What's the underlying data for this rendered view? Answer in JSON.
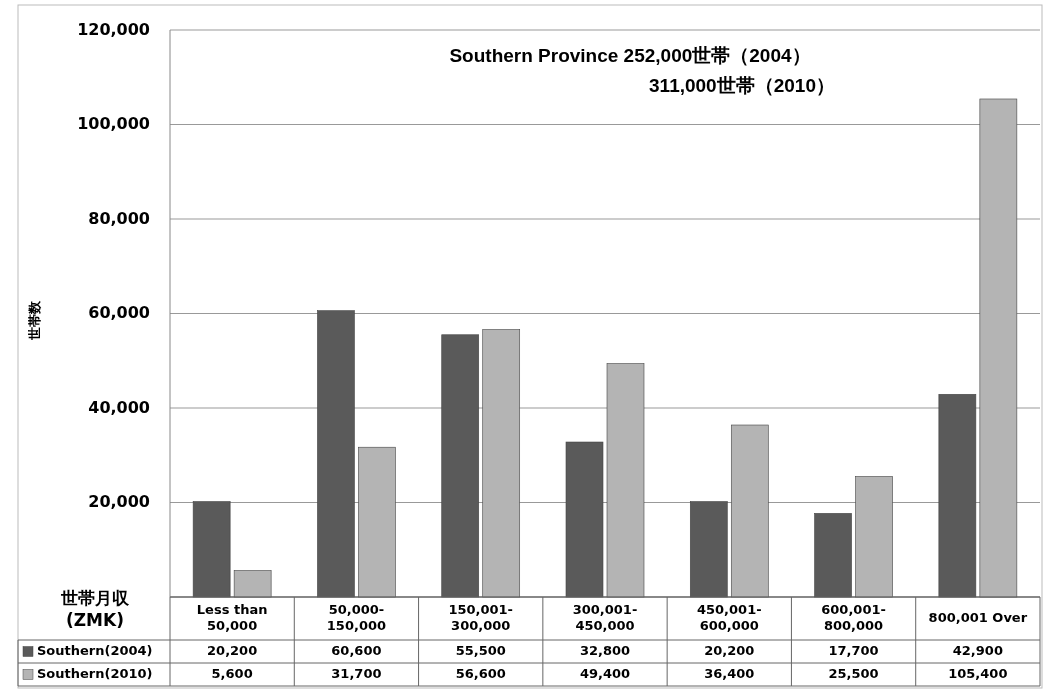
{
  "chart_data": {
    "type": "bar",
    "title": "Southern Province   252,000世帯（2004）",
    "subtitle": "311,000世帯（2010）",
    "ylabel": "世帯数",
    "xlabel": "世帯月収\n(ZMK)",
    "categories": [
      "Less than\n50,000",
      "50,000-\n150,000",
      "150,001-\n300,000",
      "300,001-\n450,000",
      "450,001-\n600,000",
      "600,001-\n800,000",
      "800,001 Over"
    ],
    "series": [
      {
        "name": "Southern(2004)",
        "color": "#5a5a5a",
        "values": [
          20200,
          60600,
          55500,
          32800,
          20200,
          17700,
          42900
        ],
        "value_labels": [
          "20,200",
          "60,600",
          "55,500",
          "32,800",
          "20,200",
          "17,700",
          "42,900"
        ]
      },
      {
        "name": "Southern(2010)",
        "color": "#b4b4b4",
        "values": [
          5600,
          31700,
          56600,
          49400,
          36400,
          25500,
          105400
        ],
        "value_labels": [
          "5,600",
          "31,700",
          "56,600",
          "49,400",
          "36,400",
          "25,500",
          "105,400"
        ]
      }
    ],
    "ylim": [
      0,
      120000
    ],
    "yticks": [
      {
        "value": 0,
        "label": null
      },
      {
        "value": 20000,
        "label": "20,000"
      },
      {
        "value": 40000,
        "label": "40,000"
      },
      {
        "value": 60000,
        "label": "60,000"
      },
      {
        "value": 80000,
        "label": "80,000"
      },
      {
        "value": 100000,
        "label": "100,000"
      },
      {
        "value": 120000,
        "label": "120,000"
      }
    ],
    "grid": "y",
    "legend": "bottom left"
  }
}
